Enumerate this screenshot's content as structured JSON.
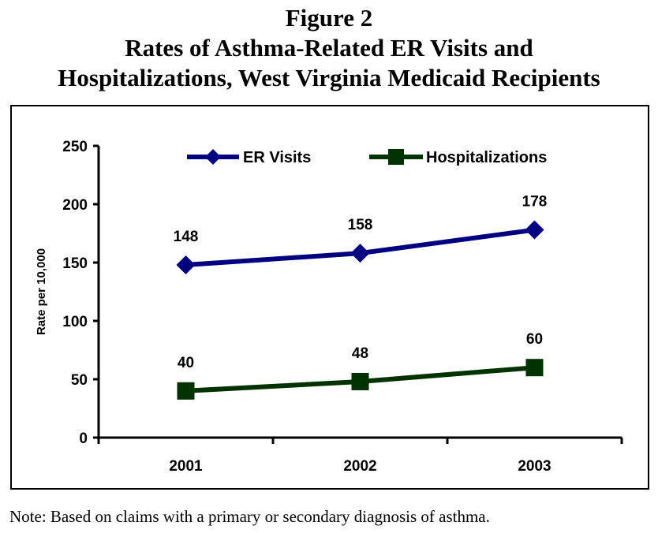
{
  "figure": {
    "label": "Figure 2",
    "title_line1": "Rates of Asthma-Related ER Visits and",
    "title_line2": "Hospitalizations, West Virginia Medicaid Recipients",
    "note": "Note:  Based on claims with a primary or secondary diagnosis of asthma."
  },
  "chart_data": {
    "type": "line",
    "title": "Rates of Asthma-Related ER Visits and Hospitalizations, West Virginia Medicaid Recipients",
    "xlabel": "",
    "ylabel": "Rate per 10,000",
    "categories": [
      "2001",
      "2002",
      "2003"
    ],
    "ylim": [
      0,
      250
    ],
    "yticks": [
      0,
      50,
      100,
      150,
      200,
      250
    ],
    "grid": false,
    "legend_position": "top",
    "series": [
      {
        "name": "ER Visits",
        "values": [
          148,
          158,
          178
        ],
        "color": "#000080",
        "marker": "diamond",
        "labels": [
          "148",
          "158",
          "178"
        ]
      },
      {
        "name": "Hospitalizations",
        "values": [
          40,
          48,
          60
        ],
        "color": "#003300",
        "marker": "square",
        "labels": [
          "40",
          "48",
          "60"
        ]
      }
    ]
  }
}
